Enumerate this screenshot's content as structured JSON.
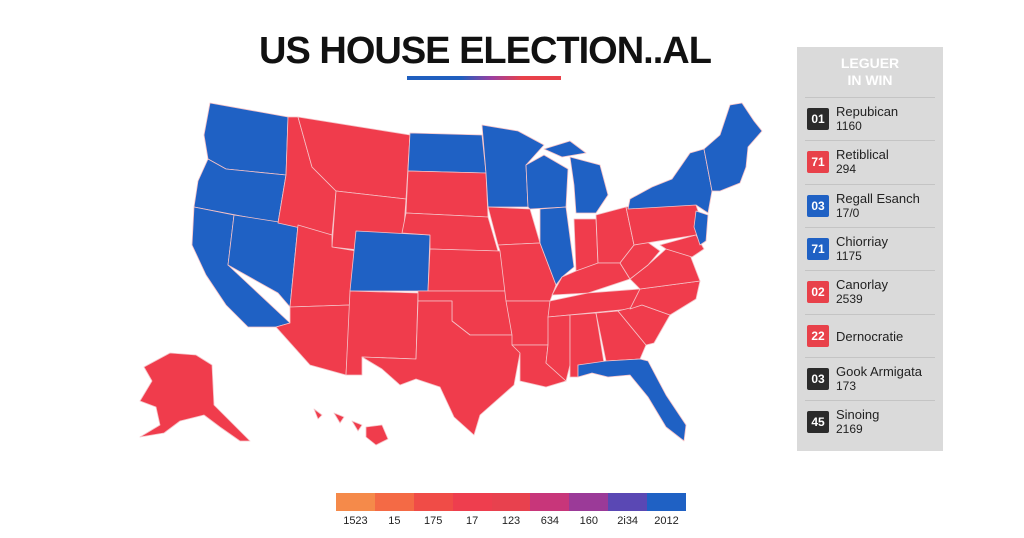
{
  "title": "US HOUSE ELECTION..AL",
  "colors": {
    "republican": "#f03c4c",
    "democrat": "#1f61c4",
    "state_border": "#f7b8be"
  },
  "map": {
    "states": [
      {
        "name": "washington",
        "party": "democrat"
      },
      {
        "name": "oregon",
        "party": "democrat"
      },
      {
        "name": "california",
        "party": "democrat"
      },
      {
        "name": "nevada",
        "party": "democrat"
      },
      {
        "name": "idaho",
        "party": "republican"
      },
      {
        "name": "montana",
        "party": "republican"
      },
      {
        "name": "wyoming",
        "party": "republican"
      },
      {
        "name": "utah",
        "party": "republican"
      },
      {
        "name": "arizona",
        "party": "republican"
      },
      {
        "name": "colorado",
        "party": "democrat"
      },
      {
        "name": "new-mexico",
        "party": "republican"
      },
      {
        "name": "north-dakota",
        "party": "democrat"
      },
      {
        "name": "south-dakota",
        "party": "republican"
      },
      {
        "name": "nebraska",
        "party": "republican"
      },
      {
        "name": "kansas",
        "party": "republican"
      },
      {
        "name": "oklahoma",
        "party": "republican"
      },
      {
        "name": "texas",
        "party": "republican"
      },
      {
        "name": "minnesota",
        "party": "democrat"
      },
      {
        "name": "iowa",
        "party": "republican"
      },
      {
        "name": "missouri",
        "party": "republican"
      },
      {
        "name": "arkansas",
        "party": "republican"
      },
      {
        "name": "louisiana",
        "party": "republican"
      },
      {
        "name": "wisconsin",
        "party": "democrat"
      },
      {
        "name": "illinois",
        "party": "democrat"
      },
      {
        "name": "michigan",
        "party": "democrat"
      },
      {
        "name": "indiana",
        "party": "republican"
      },
      {
        "name": "ohio",
        "party": "republican"
      },
      {
        "name": "kentucky",
        "party": "republican"
      },
      {
        "name": "tennessee",
        "party": "republican"
      },
      {
        "name": "mississippi",
        "party": "republican"
      },
      {
        "name": "alabama",
        "party": "republican"
      },
      {
        "name": "georgia",
        "party": "republican"
      },
      {
        "name": "florida",
        "party": "democrat"
      },
      {
        "name": "south-carolina",
        "party": "republican"
      },
      {
        "name": "north-carolina",
        "party": "republican"
      },
      {
        "name": "virginia",
        "party": "republican"
      },
      {
        "name": "west-virginia",
        "party": "republican"
      },
      {
        "name": "pennsylvania",
        "party": "republican"
      },
      {
        "name": "new-york",
        "party": "democrat"
      },
      {
        "name": "new-england",
        "party": "democrat"
      },
      {
        "name": "alaska",
        "party": "republican"
      },
      {
        "name": "hawaii",
        "party": "republican"
      }
    ]
  },
  "legend": {
    "heading_line1": "LEGUER",
    "heading_line2": "IN WIN",
    "items": [
      {
        "badge": "01",
        "badge_color": "#2b2b2b",
        "name": "Repubican",
        "value": "1160"
      },
      {
        "badge": "71",
        "badge_color": "#e8414a",
        "name": "Retiblical",
        "value": "294"
      },
      {
        "badge": "03",
        "badge_color": "#1f61c4",
        "name": "Regall Esanch",
        "value": "17/0"
      },
      {
        "badge": "71",
        "badge_color": "#1f61c4",
        "name": "Chiorriay",
        "value": "1175"
      },
      {
        "badge": "02",
        "badge_color": "#e8414a",
        "name": "Canorlay",
        "value": "2539"
      },
      {
        "badge": "22",
        "badge_color": "#e8414a",
        "name": "Dernocratie",
        "value": ""
      },
      {
        "badge": "03",
        "badge_color": "#2b2b2b",
        "name": "Gook Armigata",
        "value": "173"
      },
      {
        "badge": "45",
        "badge_color": "#2b2b2b",
        "name": "Sinoing",
        "value": "2169"
      }
    ]
  },
  "scale": {
    "segments": [
      {
        "color": "#f58a4a",
        "label": "1523"
      },
      {
        "color": "#f46a45",
        "label": "15"
      },
      {
        "color": "#f04c47",
        "label": "175"
      },
      {
        "color": "#ee3e4e",
        "label": "17"
      },
      {
        "color": "#e8414e",
        "label": "123"
      },
      {
        "color": "#c8367a",
        "label": "634"
      },
      {
        "color": "#9b3a98",
        "label": "160"
      },
      {
        "color": "#5a48b4",
        "label": "2i34"
      },
      {
        "color": "#1f61c4",
        "label": "2012"
      }
    ]
  }
}
